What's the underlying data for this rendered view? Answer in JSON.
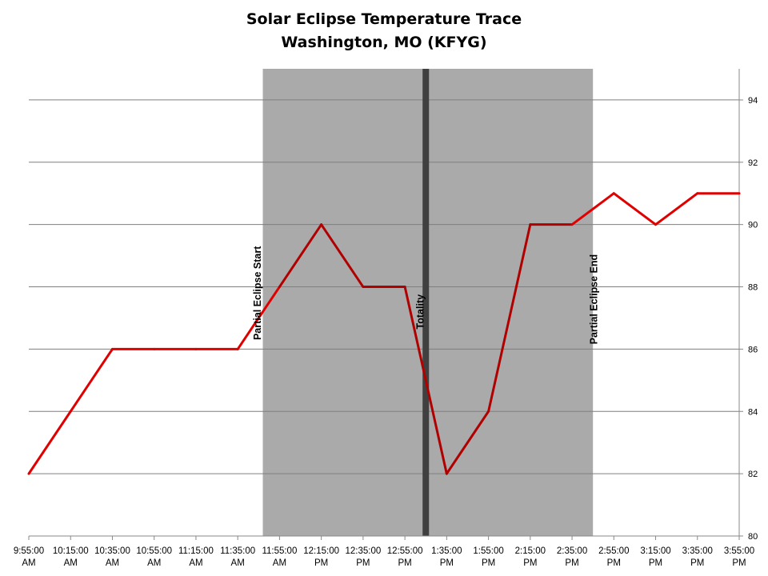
{
  "chart_data": {
    "type": "line",
    "title": "Solar Eclipse Temperature Trace",
    "subtitle": "Washington, MO (KFYG)",
    "xlabel": "",
    "ylabel": "",
    "x_tick_labels": [
      [
        "9:55:00",
        "AM"
      ],
      [
        "10:15:00",
        "AM"
      ],
      [
        "10:35:00",
        "AM"
      ],
      [
        "10:55:00",
        "AM"
      ],
      [
        "11:15:00",
        "AM"
      ],
      [
        "11:35:00",
        "AM"
      ],
      [
        "11:55:00",
        "AM"
      ],
      [
        "12:15:00",
        "PM"
      ],
      [
        "12:35:00",
        "PM"
      ],
      [
        "12:55:00",
        "PM"
      ],
      [
        "1:35:00",
        "PM"
      ],
      [
        "1:55:00",
        "PM"
      ],
      [
        "2:15:00",
        "PM"
      ],
      [
        "2:35:00",
        "PM"
      ],
      [
        "2:55:00",
        "PM"
      ],
      [
        "3:15:00",
        "PM"
      ],
      [
        "3:35:00",
        "PM"
      ],
      [
        "3:55:00",
        "PM"
      ]
    ],
    "y_ticks": [
      80,
      82,
      84,
      86,
      88,
      90,
      92,
      94
    ],
    "ylim": [
      80,
      95
    ],
    "y_axis_position": "right",
    "grid": "horizontal",
    "series": [
      {
        "color": "#e00000",
        "eclipse_color": "#b00000",
        "x": [
          "9:55:00 AM",
          "10:15:00 AM",
          "10:35:00 AM",
          "10:55:00 AM",
          "11:15:00 AM",
          "11:35:00 AM",
          "11:55:00 AM",
          "12:15:00 PM",
          "12:35:00 PM",
          "12:55:00 PM",
          "1:35:00 PM",
          "1:55:00 PM",
          "2:15:00 PM",
          "2:35:00 PM",
          "2:55:00 PM",
          "3:15:00 PM",
          "3:35:00 PM",
          "3:55:00 PM"
        ],
        "values": [
          82,
          84,
          86,
          86,
          86,
          86,
          88,
          90,
          88,
          88,
          82,
          84,
          90,
          90,
          91,
          90,
          91,
          91
        ]
      }
    ],
    "shaded_regions": [
      {
        "from_index": 5.6,
        "to_index": 13.5,
        "color": "#aaaaaa"
      }
    ],
    "vertical_markers": [
      {
        "index": 9.5,
        "color": "#404040"
      }
    ],
    "annotations": [
      {
        "text": "Partial Eclipse Start",
        "index": 5.55,
        "value": 87.8
      },
      {
        "text": "Totality",
        "index": 9.45,
        "value": 87.2
      },
      {
        "text": "Partial Eclipse End",
        "index": 13.6,
        "value": 87.6
      }
    ]
  }
}
